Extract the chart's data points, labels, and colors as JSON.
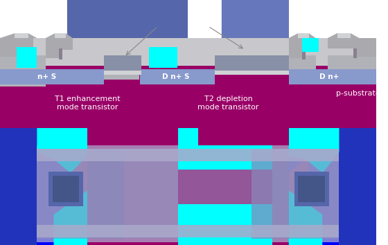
{
  "colors": {
    "bg": "#ffffff",
    "p_sub": "#990066",
    "n_plus": "#8899cc",
    "field_ox": "#b0b2b8",
    "gate_ox": "#d0d2d5",
    "poly": "#8890a8",
    "metal_light": "#c8c8cc",
    "metal_mid": "#aaaaae",
    "metal_dark": "#888090",
    "cyan": "#00ffff",
    "blue": "#0000ff",
    "blue_dark": "#2233bb",
    "lav": "#9090bb",
    "lav_light": "#aaaacc",
    "lav_mid": "#8888bb",
    "dark_sq": "#5566aa",
    "top_blue": "#5566aa",
    "mid_blue": "#6677bb",
    "dark_gray": "#707078",
    "white": "#ffffff"
  },
  "labels": {
    "n_plus_S_left": "n+ S",
    "D_n_plus_S": "D n+ S",
    "D_n_plus_right": "D n+",
    "T1": "T1 enhancement\nmode transistor",
    "T2": "T2 depletion\nmode transistor",
    "p_sub": "p-substrate"
  },
  "figsize": [
    5.6,
    3.54
  ],
  "dpi": 100
}
